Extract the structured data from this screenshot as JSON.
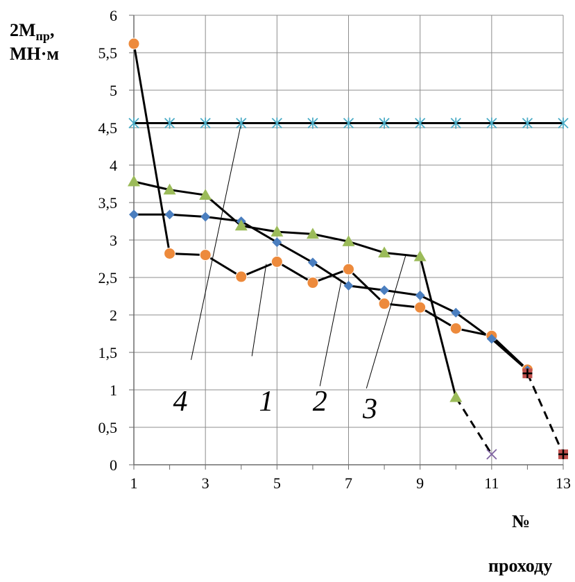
{
  "chart_data": {
    "type": "line",
    "ylabel_main": "2M",
    "ylabel_sub": "пр",
    "ylabel_suffix": ",",
    "ylabel_unit": "МН·м",
    "xlabel_line1": "№",
    "xlabel_line2": "проходу",
    "xlim": [
      1,
      13
    ],
    "ylim": [
      0,
      6
    ],
    "x_ticks": [
      1,
      3,
      5,
      7,
      9,
      11,
      13
    ],
    "x_tick_labels": [
      "1",
      "3",
      "5",
      "7",
      "9",
      "11",
      "13"
    ],
    "y_ticks": [
      0,
      0.5,
      1,
      1.5,
      2,
      2.5,
      3,
      3.5,
      4,
      4.5,
      5,
      5.5,
      6
    ],
    "y_tick_labels": [
      "0",
      "0,5",
      "1",
      "1,5",
      "2",
      "2,5",
      "3",
      "3,5",
      "4",
      "4,5",
      "5",
      "5,5",
      "6"
    ],
    "grid": true,
    "series": [
      {
        "label": "1",
        "marker": "circle",
        "color": "#ED8A3C",
        "x": [
          1,
          2,
          3,
          4,
          5,
          6,
          7,
          8,
          9,
          10,
          11,
          12
        ],
        "y": [
          5.62,
          2.82,
          2.8,
          2.51,
          2.71,
          2.43,
          2.61,
          2.15,
          2.1,
          1.82,
          1.72,
          1.27
        ]
      },
      {
        "label": "2",
        "marker": "diamond",
        "color": "#4A7EBF",
        "x": [
          1,
          2,
          3,
          4,
          5,
          6,
          7,
          8,
          9,
          10,
          11,
          12
        ],
        "y": [
          3.34,
          3.34,
          3.31,
          3.25,
          2.97,
          2.7,
          2.39,
          2.33,
          2.26,
          2.03,
          1.68,
          1.26
        ]
      },
      {
        "label": "3",
        "marker": "triangle",
        "color": "#9BBB59",
        "x": [
          1,
          2,
          3,
          4,
          5,
          6,
          7,
          8,
          9,
          10
        ],
        "y": [
          3.78,
          3.67,
          3.6,
          3.19,
          3.11,
          3.08,
          2.98,
          2.83,
          2.78,
          0.9
        ]
      },
      {
        "label": "4",
        "marker": "star",
        "color": "#4BACC6",
        "x": [
          1,
          2,
          3,
          4,
          5,
          6,
          7,
          8,
          9,
          10,
          11,
          12,
          13
        ],
        "y": [
          4.56,
          4.56,
          4.56,
          4.56,
          4.56,
          4.56,
          4.56,
          4.56,
          4.56,
          4.56,
          4.56,
          4.56,
          4.56
        ]
      }
    ],
    "dashed_extensions": [
      {
        "from": [
          10,
          0.9
        ],
        "to": [
          11,
          0.14
        ],
        "end_marker": "cross",
        "end_color": "#8064A2"
      },
      {
        "from": [
          12,
          1.22
        ],
        "to": [
          13,
          0.14
        ],
        "end_marker": "square-plus",
        "end_color": "#C0504D"
      }
    ],
    "annotations": [
      {
        "text": "4",
        "x": 2.3,
        "y": 0.72,
        "leader_from": [
          2.6,
          1.4
        ],
        "leader_to": [
          4.0,
          4.56
        ]
      },
      {
        "text": "1",
        "x": 4.7,
        "y": 0.72,
        "leader_from": [
          4.3,
          1.45
        ],
        "leader_to": [
          4.7,
          2.68
        ]
      },
      {
        "text": "2",
        "x": 6.2,
        "y": 0.72,
        "leader_from": [
          6.2,
          1.05
        ],
        "leader_to": [
          6.8,
          2.46
        ]
      },
      {
        "text": "3",
        "x": 7.6,
        "y": 0.62,
        "leader_from": [
          7.5,
          1.02
        ],
        "leader_to": [
          8.6,
          2.8
        ]
      }
    ]
  }
}
